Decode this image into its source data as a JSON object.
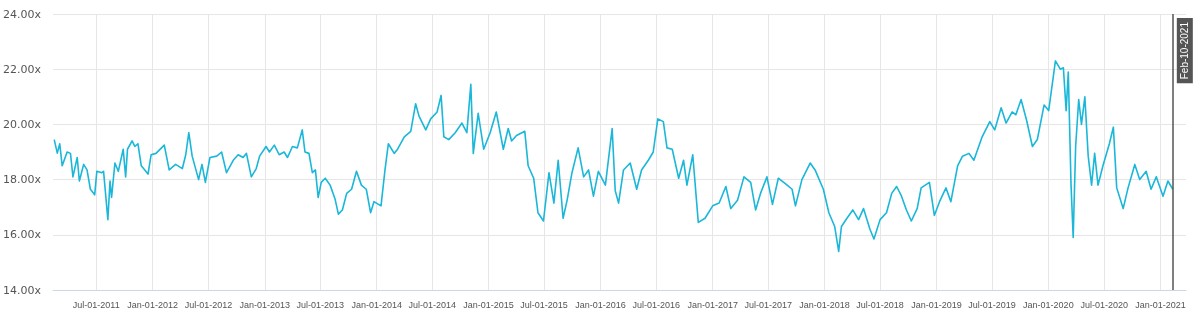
{
  "chart_data": {
    "type": "line",
    "grid": true,
    "marker": "none",
    "line_style": "solid",
    "xlim": [
      "2011-02-10",
      "2021-03-25"
    ],
    "xticks": [
      {
        "value": "2011-07-01",
        "label": "Jul-01-2011"
      },
      {
        "value": "2012-01-01",
        "label": "Jan-01-2012"
      },
      {
        "value": "2012-07-01",
        "label": "Jul-01-2012"
      },
      {
        "value": "2013-01-01",
        "label": "Jan-01-2013"
      },
      {
        "value": "2013-07-01",
        "label": "Jul-01-2013"
      },
      {
        "value": "2014-01-01",
        "label": "Jan-01-2014"
      },
      {
        "value": "2014-07-01",
        "label": "Jul-01-2014"
      },
      {
        "value": "2015-01-01",
        "label": "Jan-01-2015"
      },
      {
        "value": "2015-07-01",
        "label": "Jul-01-2015"
      },
      {
        "value": "2016-01-01",
        "label": "Jan-01-2016"
      },
      {
        "value": "2016-07-01",
        "label": "Jul-01-2016"
      },
      {
        "value": "2017-01-01",
        "label": "Jan-01-2017"
      },
      {
        "value": "2017-07-01",
        "label": "Jul-01-2017"
      },
      {
        "value": "2018-01-01",
        "label": "Jan-01-2018"
      },
      {
        "value": "2018-07-01",
        "label": "Jul-01-2018"
      },
      {
        "value": "2019-01-01",
        "label": "Jan-01-2019"
      },
      {
        "value": "2019-07-01",
        "label": "Jul-01-2019"
      },
      {
        "value": "2020-01-01",
        "label": "Jan-01-2020"
      },
      {
        "value": "2020-07-01",
        "label": "Jul-01-2020"
      },
      {
        "value": "2021-01-01",
        "label": "Jan-01-2021"
      }
    ],
    "ylim": [
      14,
      24
    ],
    "yticks": [
      {
        "value": 14,
        "label": "14.00x"
      },
      {
        "value": 16,
        "label": "16.00x"
      },
      {
        "value": 18,
        "label": "18.00x"
      },
      {
        "value": 20,
        "label": "20.00x"
      },
      {
        "value": 22,
        "label": "22.00x"
      },
      {
        "value": 24,
        "label": "24.00x"
      }
    ],
    "ref_lines": [
      {
        "axis": "x",
        "value": "2021-02-10",
        "label": "Feb-10-2021",
        "color": "#555555"
      }
    ],
    "series": [
      {
        "color": "#1ab7d9",
        "x": [
          "2011-02-14",
          "2011-02-24",
          "2011-03-04",
          "2011-03-12",
          "2011-03-28",
          "2011-04-08",
          "2011-04-16",
          "2011-04-30",
          "2011-05-07",
          "2011-05-21",
          "2011-06-01",
          "2011-06-12",
          "2011-06-26",
          "2011-07-03",
          "2011-07-19",
          "2011-07-25",
          "2011-08-08",
          "2011-08-15",
          "2011-08-20",
          "2011-08-31",
          "2011-09-11",
          "2011-09-27",
          "2011-10-05",
          "2011-10-11",
          "2011-10-26",
          "2011-11-04",
          "2011-11-14",
          "2011-11-25",
          "2011-12-17",
          "2011-12-27",
          "2012-01-12",
          "2012-02-08",
          "2012-02-24",
          "2012-03-16",
          "2012-04-07",
          "2012-04-18",
          "2012-04-28",
          "2012-05-09",
          "2012-05-30",
          "2012-06-10",
          "2012-06-21",
          "2012-07-06",
          "2012-07-28",
          "2012-08-13",
          "2012-08-29",
          "2012-09-20",
          "2012-10-06",
          "2012-10-22",
          "2012-11-02",
          "2012-11-18",
          "2012-12-04",
          "2012-12-15",
          "2013-01-05",
          "2013-01-16",
          "2013-02-01",
          "2013-02-17",
          "2013-03-05",
          "2013-03-16",
          "2013-04-01",
          "2013-04-17",
          "2013-05-03",
          "2013-05-12",
          "2013-05-25",
          "2013-06-05",
          "2013-06-15",
          "2013-06-24",
          "2013-07-04",
          "2013-07-17",
          "2013-08-02",
          "2013-08-18",
          "2013-08-29",
          "2013-09-11",
          "2013-09-25",
          "2013-10-11",
          "2013-10-27",
          "2013-11-12",
          "2013-11-28",
          "2013-12-12",
          "2013-12-23",
          "2014-01-15",
          "2014-01-28",
          "2014-02-08",
          "2014-02-27",
          "2014-03-10",
          "2014-04-01",
          "2014-04-22",
          "2014-05-08",
          "2014-05-19",
          "2014-06-10",
          "2014-06-26",
          "2014-07-17",
          "2014-07-30",
          "2014-08-08",
          "2014-08-24",
          "2014-09-14",
          "2014-10-06",
          "2014-10-22",
          "2014-11-04",
          "2014-11-12",
          "2014-11-28",
          "2014-12-16",
          "2015-01-06",
          "2015-01-26",
          "2015-02-18",
          "2015-03-06",
          "2015-03-17",
          "2015-04-02",
          "2015-04-29",
          "2015-05-10",
          "2015-05-28",
          "2015-06-11",
          "2015-06-29",
          "2015-07-17",
          "2015-08-02",
          "2015-08-16",
          "2015-09-01",
          "2015-09-14",
          "2015-09-30",
          "2015-10-20",
          "2015-11-07",
          "2015-11-23",
          "2015-12-09",
          "2015-12-25",
          "2016-01-17",
          "2016-02-08",
          "2016-02-18",
          "2016-02-29",
          "2016-03-16",
          "2016-04-07",
          "2016-04-28",
          "2016-05-14",
          "2016-06-05",
          "2016-06-21",
          "2016-07-06",
          "2016-07-24",
          "2016-08-05",
          "2016-08-22",
          "2016-09-12",
          "2016-09-28",
          "2016-10-09",
          "2016-10-28",
          "2016-11-15",
          "2016-12-07",
          "2017-01-01",
          "2017-01-22",
          "2017-02-13",
          "2017-03-01",
          "2017-03-23",
          "2017-04-13",
          "2017-05-05",
          "2017-05-21",
          "2017-06-06",
          "2017-06-27",
          "2017-07-15",
          "2017-08-03",
          "2017-09-01",
          "2017-09-17",
          "2017-09-28",
          "2017-10-19",
          "2017-11-15",
          "2017-12-01",
          "2017-12-28",
          "2018-01-15",
          "2018-02-03",
          "2018-02-16",
          "2018-02-25",
          "2018-03-15",
          "2018-04-03",
          "2018-04-22",
          "2018-05-08",
          "2018-05-29",
          "2018-06-11",
          "2018-07-01",
          "2018-07-22",
          "2018-08-08",
          "2018-08-24",
          "2018-09-09",
          "2018-09-25",
          "2018-10-11",
          "2018-10-30",
          "2018-11-12",
          "2018-12-09",
          "2018-12-25",
          "2019-01-11",
          "2019-02-01",
          "2019-02-17",
          "2019-03-11",
          "2019-03-27",
          "2019-04-17",
          "2019-05-03",
          "2019-05-30",
          "2019-06-24",
          "2019-07-10",
          "2019-07-31",
          "2019-08-16",
          "2019-09-05",
          "2019-09-17",
          "2019-10-04",
          "2019-10-22",
          "2019-11-10",
          "2019-11-26",
          "2019-12-18",
          "2020-01-02",
          "2020-01-18",
          "2020-01-24",
          "2020-02-09",
          "2020-02-19",
          "2020-02-28",
          "2020-03-06",
          "2020-03-15",
          "2020-03-22",
          "2020-03-30",
          "2020-04-09",
          "2020-04-18",
          "2020-04-29",
          "2020-05-10",
          "2020-05-21",
          "2020-05-31",
          "2020-06-11",
          "2020-06-27",
          "2020-07-18",
          "2020-07-31",
          "2020-08-11",
          "2020-09-01",
          "2020-09-17",
          "2020-10-09",
          "2020-10-25",
          "2020-11-15",
          "2020-12-01",
          "2020-12-18",
          "2021-01-09",
          "2021-01-25",
          "2021-02-10"
        ],
        "values": [
          19.45,
          18.96,
          19.3,
          18.5,
          19.0,
          18.95,
          18.1,
          18.8,
          17.95,
          18.55,
          18.35,
          17.65,
          17.45,
          18.3,
          18.25,
          18.3,
          16.55,
          17.95,
          17.35,
          18.6,
          18.3,
          19.1,
          18.1,
          19.1,
          19.4,
          19.2,
          19.3,
          18.5,
          18.2,
          18.9,
          18.95,
          19.25,
          18.35,
          18.55,
          18.4,
          18.9,
          19.7,
          18.85,
          18.0,
          18.55,
          17.9,
          18.8,
          18.85,
          19.0,
          18.25,
          18.7,
          18.9,
          18.8,
          18.95,
          18.1,
          18.4,
          18.85,
          19.2,
          19.0,
          19.25,
          18.9,
          19.0,
          18.8,
          19.2,
          19.15,
          19.8,
          19.0,
          18.95,
          18.25,
          18.35,
          17.35,
          17.9,
          18.05,
          17.8,
          17.3,
          16.75,
          16.9,
          17.5,
          17.65,
          18.3,
          17.8,
          17.65,
          16.8,
          17.2,
          17.05,
          18.35,
          19.3,
          18.95,
          19.1,
          19.55,
          19.75,
          20.75,
          20.3,
          19.8,
          20.2,
          20.45,
          21.05,
          19.55,
          19.45,
          19.7,
          20.05,
          19.7,
          21.45,
          18.95,
          20.4,
          19.1,
          19.7,
          20.45,
          19.1,
          19.85,
          19.4,
          19.6,
          19.75,
          18.5,
          18.05,
          16.8,
          16.5,
          18.25,
          17.15,
          18.7,
          16.6,
          17.25,
          18.25,
          19.15,
          18.1,
          18.35,
          17.4,
          18.3,
          17.8,
          19.85,
          17.6,
          17.15,
          18.35,
          18.6,
          17.65,
          18.35,
          18.7,
          19.0,
          20.2,
          20.1,
          19.15,
          19.1,
          18.05,
          18.7,
          17.8,
          18.9,
          16.45,
          16.6,
          17.05,
          17.15,
          17.75,
          16.95,
          17.25,
          18.1,
          17.9,
          16.9,
          17.5,
          18.1,
          17.1,
          18.05,
          17.8,
          17.65,
          17.05,
          18.0,
          18.6,
          18.35,
          17.65,
          16.8,
          16.3,
          15.4,
          16.3,
          16.6,
          16.9,
          16.55,
          16.95,
          16.2,
          15.85,
          16.55,
          16.8,
          17.5,
          17.75,
          17.4,
          16.9,
          16.5,
          16.95,
          17.7,
          17.9,
          16.7,
          17.2,
          17.7,
          17.2,
          18.5,
          18.85,
          18.95,
          18.7,
          19.55,
          20.1,
          19.8,
          20.6,
          20.05,
          20.45,
          20.35,
          20.9,
          20.15,
          19.2,
          19.45,
          20.7,
          20.5,
          21.8,
          22.3,
          22.0,
          22.05,
          20.5,
          21.9,
          17.8,
          15.9,
          19.2,
          20.9,
          20.0,
          21.0,
          18.85,
          17.8,
          18.95,
          17.8,
          18.5,
          19.3,
          19.9,
          17.7,
          16.95,
          17.7,
          18.55,
          18.0,
          18.3,
          17.65,
          18.1,
          17.4,
          17.95,
          17.65
        ]
      }
    ]
  }
}
